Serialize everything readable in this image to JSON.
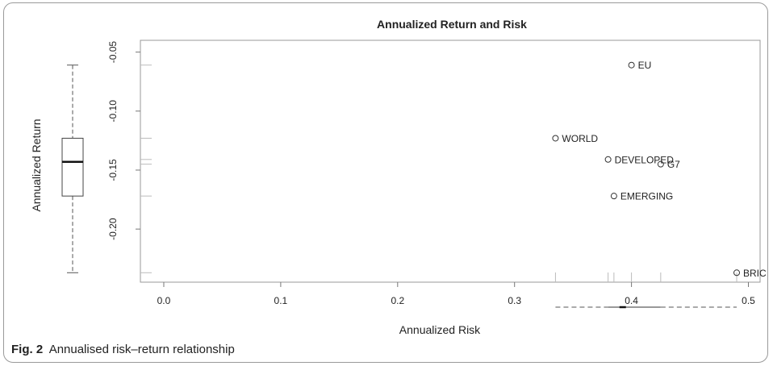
{
  "caption": {
    "label": "Fig. 2",
    "text": "Annualised risk–return relationship"
  },
  "chart_data": {
    "type": "scatter",
    "title": "Annualized Return and Risk",
    "xlabel": "Annualized Risk",
    "ylabel": "Annualized Return",
    "xlim": [
      -0.02,
      0.51
    ],
    "ylim": [
      -0.245,
      -0.04
    ],
    "xticks": [
      "0.0",
      "0.1",
      "0.2",
      "0.3",
      "0.4",
      "0.5"
    ],
    "yticks": [
      "-0.05",
      "-0.10",
      "-0.15",
      "-0.20"
    ],
    "grid": false,
    "points": [
      {
        "label": "EU",
        "x": 0.4,
        "y": -0.061
      },
      {
        "label": "WORLD",
        "x": 0.335,
        "y": -0.123
      },
      {
        "label": "DEVELOPED",
        "x": 0.38,
        "y": -0.141
      },
      {
        "label": "G7",
        "x": 0.425,
        "y": -0.145
      },
      {
        "label": "EMERGING",
        "x": 0.385,
        "y": -0.172
      },
      {
        "label": "BRIC",
        "x": 0.49,
        "y": -0.237
      }
    ],
    "y_boxplot": {
      "min": -0.237,
      "q1": -0.172,
      "median": -0.143,
      "q3": -0.123,
      "max": -0.061
    },
    "x_boxplot": {
      "min": 0.335,
      "q1": 0.38,
      "median": 0.3925,
      "q3": 0.425,
      "max": 0.49
    }
  }
}
